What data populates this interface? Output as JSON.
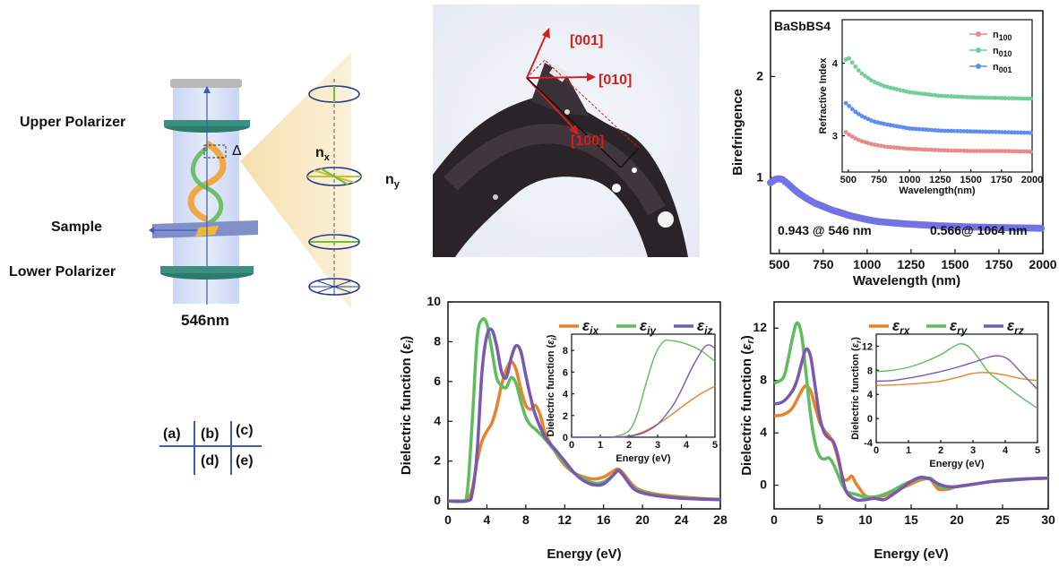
{
  "panel_a": {
    "upper_polarizer": "Upper Polarizer",
    "sample": "Sample",
    "lower_polarizer": "Lower Polarizer",
    "wavelength": "546nm",
    "delta": "Δ",
    "nx": "n",
    "nx_sub": "x",
    "ny": "n",
    "ny_sub": "y"
  },
  "panel_b": {
    "dir_001": "[001]",
    "dir_010": "[010]",
    "dir_100": "[100]"
  },
  "layout_key": {
    "a": "(a)",
    "b": "(b)",
    "c": "(c)",
    "d": "(d)",
    "e": "(e)"
  },
  "colors": {
    "orange": "#e8822b",
    "green": "#5cbf5c",
    "purple": "#7a58b0",
    "bire": "#7373e6",
    "n100": "#e88a8a",
    "n010": "#6fcf97",
    "n001": "#5b8ef0",
    "red": "#d41f1f"
  },
  "chart_data": [
    {
      "id": "c",
      "type": "scatter",
      "title": "BaSbBS4",
      "xlabel": "Wavelength (nm)",
      "ylabel": "Birefringence",
      "xlim": [
        450,
        2000
      ],
      "ylim": [
        0.25,
        2.65
      ],
      "xticks": [
        "500",
        "750",
        "1000",
        "1250",
        "1500",
        "1750",
        "2000"
      ],
      "yticks": [
        "1",
        "2"
      ],
      "annotation_1": "0.943 @ 546 nm",
      "annotation_2": "0.566@ 1064 nm",
      "series": [
        {
          "x": [
            450,
            480,
            500,
            520,
            546,
            600,
            650,
            700,
            800,
            900,
            1000,
            1064,
            1200,
            1400,
            1600,
            1800,
            2000
          ],
          "y": [
            0.95,
            0.985,
            0.99,
            0.98,
            0.943,
            0.86,
            0.8,
            0.75,
            0.68,
            0.625,
            0.585,
            0.566,
            0.545,
            0.525,
            0.512,
            0.505,
            0.5
          ]
        }
      ],
      "inset": {
        "xlabel": "Wavelength(nm)",
        "ylabel": "Refractive Index",
        "xlim": [
          450,
          2000
        ],
        "ylim": [
          2.5,
          4.6
        ],
        "xticks": [
          "500",
          "750",
          "1000",
          "1250",
          "1500",
          "1750",
          "2000"
        ],
        "yticks": [
          "3",
          "4"
        ],
        "legend": [
          {
            "name": "n",
            "sub": "100"
          },
          {
            "name": "n",
            "sub": "010"
          },
          {
            "name": "n",
            "sub": "001"
          }
        ],
        "series": [
          {
            "x": [
              480,
              500,
              550,
              600,
              700,
              800,
              1000,
              1250,
              1500,
              1750,
              2000
            ],
            "y": [
              3.05,
              3.02,
              2.97,
              2.93,
              2.88,
              2.85,
              2.82,
              2.8,
              2.79,
              2.79,
              2.78
            ]
          },
          {
            "x": [
              480,
              500,
              550,
              600,
              700,
              800,
              1000,
              1250,
              1500,
              1750,
              2000
            ],
            "y": [
              4.05,
              4.08,
              3.97,
              3.87,
              3.75,
              3.68,
              3.6,
              3.55,
              3.53,
              3.52,
              3.51
            ]
          },
          {
            "x": [
              480,
              500,
              550,
              600,
              700,
              800,
              1000,
              1250,
              1500,
              1750,
              2000
            ],
            "y": [
              3.45,
              3.42,
              3.34,
              3.28,
              3.2,
              3.16,
              3.1,
              3.07,
              3.06,
              3.05,
              3.04
            ]
          }
        ]
      }
    },
    {
      "id": "d",
      "type": "line",
      "xlabel": "Energy (eV)",
      "ylabel": "Dielectric function (",
      "ylabel_sym": "ε",
      "ylabel_sub": "i",
      "xlim": [
        0,
        28
      ],
      "ylim": [
        -0.4,
        10
      ],
      "xticks": [
        "0",
        "4",
        "8",
        "12",
        "16",
        "20",
        "24",
        "28"
      ],
      "yticks": [
        "0",
        "2",
        "4",
        "6",
        "8",
        "10"
      ],
      "legend": [
        {
          "name": "ε",
          "sub": "ix"
        },
        {
          "name": "ε",
          "sub": "iy"
        },
        {
          "name": "ε",
          "sub": "iz"
        }
      ],
      "series": [
        {
          "x": [
            0,
            1.5,
            2,
            2.5,
            3,
            3.5,
            4,
            4.5,
            5,
            5.5,
            6,
            6.5,
            7,
            7.5,
            8,
            8.5,
            9,
            9.5,
            10,
            11,
            12,
            13,
            14,
            15,
            16,
            17,
            17.5,
            18,
            19,
            20,
            22,
            24,
            26,
            28
          ],
          "y": [
            0,
            0,
            0.05,
            0.6,
            2,
            3,
            3.5,
            3.9,
            4.7,
            5.8,
            6.6,
            7,
            6.6,
            5.6,
            4.8,
            4.6,
            4.8,
            4.3,
            3.4,
            2.5,
            1.8,
            1.4,
            1.2,
            1.1,
            1.2,
            1.5,
            1.6,
            1.4,
            0.8,
            0.5,
            0.3,
            0.2,
            0.12,
            0.08
          ]
        },
        {
          "x": [
            0,
            1.5,
            2,
            2.5,
            3,
            3.5,
            4,
            4.5,
            5,
            5.5,
            6,
            6.5,
            7,
            7.5,
            8,
            8.5,
            9,
            10,
            11,
            12,
            13,
            14,
            15,
            16,
            17,
            17.5,
            18,
            19,
            20,
            22,
            24,
            26,
            28
          ],
          "y": [
            0,
            0,
            0.5,
            4,
            8.2,
            9.1,
            8.9,
            7.6,
            6.2,
            5.8,
            5.7,
            6.2,
            5.9,
            5,
            4.2,
            3.8,
            3.6,
            3.1,
            2.5,
            1.9,
            1.4,
            1.1,
            0.9,
            0.95,
            1.3,
            1.5,
            1.3,
            0.7,
            0.45,
            0.25,
            0.15,
            0.1,
            0.07
          ]
        },
        {
          "x": [
            0,
            2,
            2.5,
            3,
            3.5,
            4,
            4.5,
            5,
            5.5,
            6,
            6.5,
            7,
            7.5,
            8,
            8.5,
            9,
            10,
            11,
            12,
            13,
            14,
            15,
            16,
            17,
            17.5,
            18,
            19,
            20,
            22,
            24,
            26,
            28
          ],
          "y": [
            0,
            0,
            0.4,
            2.5,
            6.5,
            8.3,
            8.6,
            7.8,
            6.5,
            6.2,
            7.2,
            7.8,
            7.5,
            6.3,
            5.2,
            4.3,
            3.2,
            2.6,
            2,
            1.4,
            1,
            0.8,
            0.85,
            1.3,
            1.55,
            1.3,
            0.65,
            0.4,
            0.22,
            0.13,
            0.09,
            0.06
          ]
        }
      ],
      "inset": {
        "xlabel": "Energy (eV)",
        "ylabel": "Dielectric function (",
        "ylabel_sym": "ε",
        "ylabel_sub": "i",
        "xlim": [
          0,
          5
        ],
        "ylim": [
          0,
          9.5
        ],
        "xticks": [
          "0",
          "1",
          "2",
          "3",
          "4",
          "5"
        ],
        "yticks": [
          "0",
          "2",
          "4",
          "6",
          "8"
        ],
        "series": [
          {
            "x": [
              0,
              1,
              1.5,
              2,
              2.5,
              3,
              3.5,
              4,
              4.5,
              5
            ],
            "y": [
              0,
              0,
              0.02,
              0.1,
              0.5,
              1.2,
              2.1,
              3.1,
              4.0,
              4.7
            ]
          },
          {
            "x": [
              0,
              1,
              1.5,
              2,
              2.3,
              2.6,
              2.9,
              3.2,
              3.5,
              4,
              4.5,
              5
            ],
            "y": [
              0,
              0,
              0.05,
              0.6,
              2.2,
              5,
              7.5,
              8.8,
              8.9,
              8.6,
              8,
              7
            ]
          },
          {
            "x": [
              0,
              1,
              1.5,
              2,
              2.5,
              3,
              3.5,
              3.8,
              4.2,
              4.6,
              4.8,
              5
            ],
            "y": [
              0,
              0,
              0.01,
              0.08,
              0.4,
              1.2,
              2.8,
              4.2,
              6.4,
              8.2,
              8.5,
              8.2
            ]
          }
        ]
      }
    },
    {
      "id": "e",
      "type": "line",
      "xlabel": "Energy (eV)",
      "ylabel": "Dielectric function (",
      "ylabel_sym": "ε",
      "ylabel_sub": "r",
      "xlim": [
        0,
        30
      ],
      "ylim": [
        -1.8,
        14
      ],
      "xticks": [
        "0",
        "5",
        "10",
        "15",
        "20",
        "25",
        "30"
      ],
      "yticks": [
        "0",
        "4",
        "8",
        "12"
      ],
      "legend": [
        {
          "name": "ε",
          "sub": "rx"
        },
        {
          "name": "ε",
          "sub": "ry"
        },
        {
          "name": "ε",
          "sub": "rz"
        }
      ],
      "series": [
        {
          "x": [
            0,
            1,
            2,
            3,
            3.5,
            4,
            4.5,
            5,
            5.5,
            6,
            6.5,
            7,
            7.5,
            8,
            8.5,
            9,
            10,
            11,
            12,
            13,
            14,
            15,
            16,
            17,
            17.5,
            18,
            19,
            20,
            22,
            24,
            26,
            28,
            30
          ],
          "y": [
            5.3,
            5.4,
            5.9,
            7.2,
            7.6,
            7.2,
            6,
            4.8,
            4.2,
            3.8,
            3.2,
            2,
            0.6,
            0.4,
            0.7,
            0.1,
            -0.8,
            -0.9,
            -0.8,
            -0.5,
            -0.2,
            0.1,
            0.4,
            0.5,
            0.1,
            -0.3,
            -0.3,
            -0.1,
            0.1,
            0.3,
            0.4,
            0.5,
            0.55
          ]
        },
        {
          "x": [
            0,
            1,
            1.5,
            2,
            2.5,
            3,
            3.5,
            4,
            4.5,
            5,
            5.5,
            6,
            6.5,
            7,
            7.5,
            8,
            9,
            10,
            11,
            12,
            13,
            14,
            15,
            16,
            17,
            17.5,
            18,
            19,
            20,
            22,
            24,
            26,
            28,
            30
          ],
          "y": [
            7.8,
            8.2,
            9.5,
            11.2,
            12.4,
            11.5,
            8.5,
            5.3,
            3.2,
            2.2,
            2,
            2.1,
            1.6,
            0.8,
            0,
            -0.5,
            -0.7,
            -0.9,
            -0.9,
            -0.7,
            -0.4,
            0,
            0.3,
            0.5,
            0.55,
            0.3,
            -0.1,
            -0.2,
            -0.1,
            0.1,
            0.3,
            0.45,
            0.5,
            0.55
          ]
        },
        {
          "x": [
            0,
            1,
            2,
            2.5,
            3,
            3.5,
            4,
            4.5,
            5,
            5.5,
            6,
            6.5,
            7,
            7.5,
            8,
            9,
            10,
            11,
            12,
            13,
            14,
            15,
            16,
            17,
            17.5,
            18,
            19,
            20,
            22,
            24,
            26,
            28,
            30
          ],
          "y": [
            6.2,
            6.4,
            7.2,
            8,
            9.3,
            10.4,
            9.8,
            7.5,
            5.2,
            4,
            3.6,
            3.3,
            2.2,
            0.5,
            -0.6,
            -1.1,
            -1.1,
            -1,
            -1.1,
            -0.7,
            -0.2,
            0.3,
            0.6,
            0.5,
            0.3,
            0.1,
            -0.1,
            -0.1,
            0.1,
            0.3,
            0.4,
            0.5,
            0.55
          ]
        }
      ],
      "inset": {
        "xlabel": "Energy (eV)",
        "ylabel": "Dielectric function (",
        "ylabel_sym": "ε",
        "ylabel_sub": "r",
        "xlim": [
          0,
          5
        ],
        "ylim": [
          -4,
          14
        ],
        "xticks": [
          "0",
          "1",
          "2",
          "3",
          "4",
          "5"
        ],
        "yticks": [
          "-4",
          "0",
          "4",
          "8",
          "12"
        ],
        "series": [
          {
            "x": [
              0,
              0.5,
              1,
              1.5,
              2,
              2.5,
              3,
              3.5,
              4,
              4.5,
              5
            ],
            "y": [
              5.5,
              5.55,
              5.7,
              5.9,
              6.2,
              6.8,
              7.5,
              7.6,
              7.2,
              6.6,
              6.3
            ]
          },
          {
            "x": [
              0,
              0.5,
              1,
              1.5,
              2,
              2.3,
              2.6,
              2.9,
              3.2,
              3.5,
              4,
              4.5,
              5
            ],
            "y": [
              7.8,
              8,
              8.5,
              9.4,
              10.6,
              11.6,
              12.4,
              11.8,
              9.8,
              7.6,
              5.5,
              3.5,
              1.7
            ]
          },
          {
            "x": [
              0,
              0.5,
              1,
              1.5,
              2,
              2.5,
              3,
              3.5,
              3.8,
              4.1,
              4.5,
              5
            ],
            "y": [
              6.2,
              6.3,
              6.7,
              7.2,
              7.8,
              8.5,
              9.3,
              10.2,
              10.4,
              9.8,
              7.6,
              4.8
            ]
          }
        ]
      }
    }
  ]
}
